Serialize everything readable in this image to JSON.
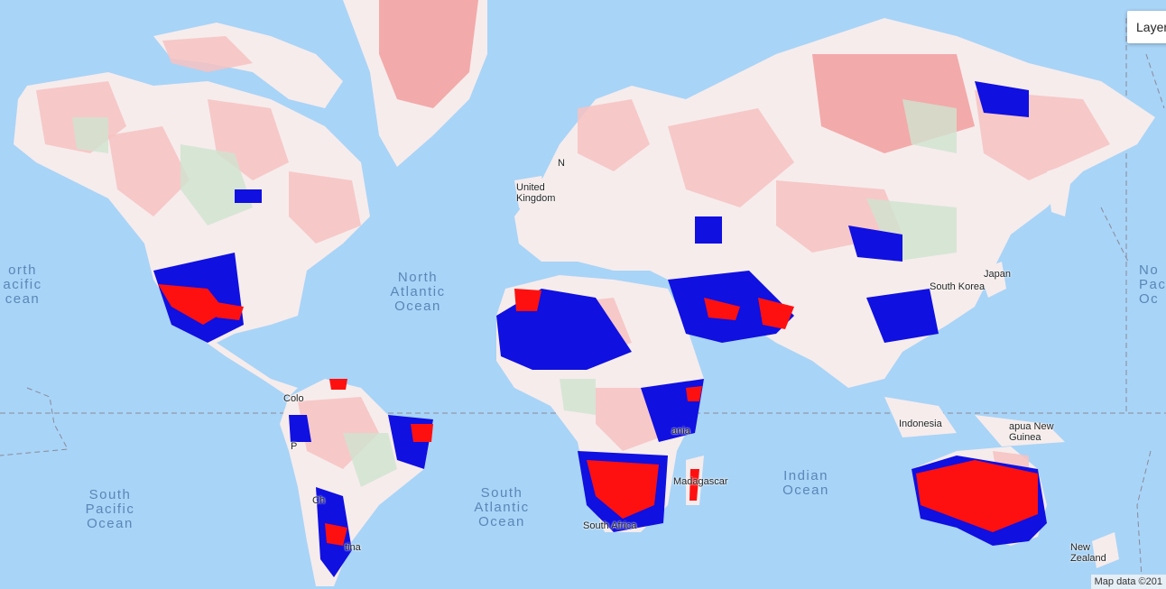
{
  "map": {
    "controls": {
      "layers_label": "Layer"
    },
    "attribution": "Map data ©201",
    "ocean_labels": {
      "north_pacific_left": "orth\nacific\ncean",
      "north_atlantic": "North\nAtlantic\nOcean",
      "north_pacific_right": "No\nPaci\nOc",
      "south_pacific": "South\nPacific\nOcean",
      "south_atlantic": "South\nAtlantic\nOcean",
      "indian": "Indian\nOcean"
    },
    "place_labels": {
      "united_kingdom": "United\nKingdom",
      "japan": "Japan",
      "south_korea": "South Korea",
      "indonesia": "Indonesia",
      "papua_new_guinea": "apua New\nGuinea",
      "madagascar": "Madagascar",
      "south_africa": "South Africa",
      "new_zealand": "New\nZealand",
      "argentina": "tina",
      "colombia": "Colo",
      "tanzania": "ania",
      "peru": "P",
      "chile": "Ch",
      "norway": "N"
    },
    "colors": {
      "ocean": "#a8d4f7",
      "land_base": "#f6ecec",
      "decrease_pink": "#f7c2c2",
      "increase_green": "#cfe3cf",
      "highlight_blue": "#1010e0",
      "highlight_red": "#ff1010"
    }
  }
}
